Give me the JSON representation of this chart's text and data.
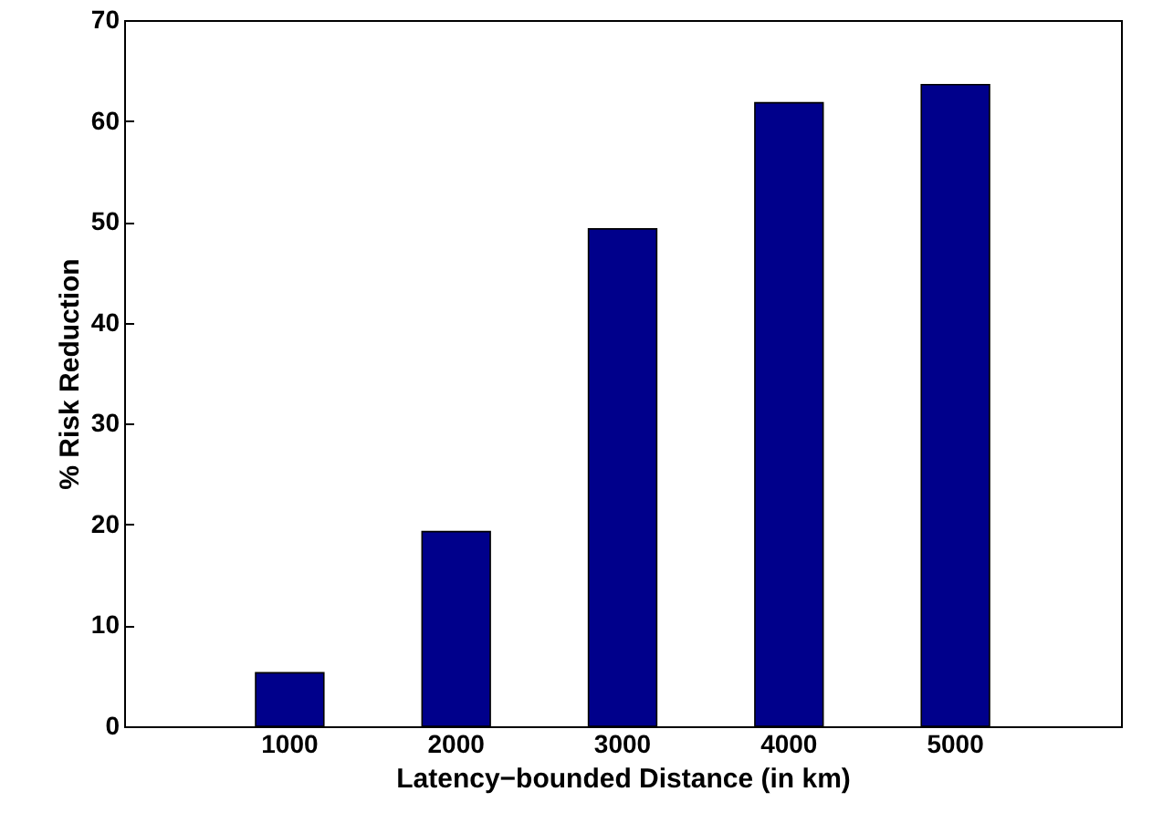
{
  "chart_data": {
    "type": "bar",
    "xlabel": "Latency−bounded Distance (in km)",
    "ylabel": "% Risk Reduction",
    "categories": [
      "1000",
      "2000",
      "3000",
      "4000",
      "5000"
    ],
    "values": [
      5.3,
      19.3,
      49.3,
      61.8,
      63.6
    ],
    "color": "#00008b",
    "ylim": [
      0,
      70
    ],
    "yticks": [
      0,
      10,
      20,
      30,
      40,
      50,
      60,
      70
    ],
    "grid": false
  }
}
